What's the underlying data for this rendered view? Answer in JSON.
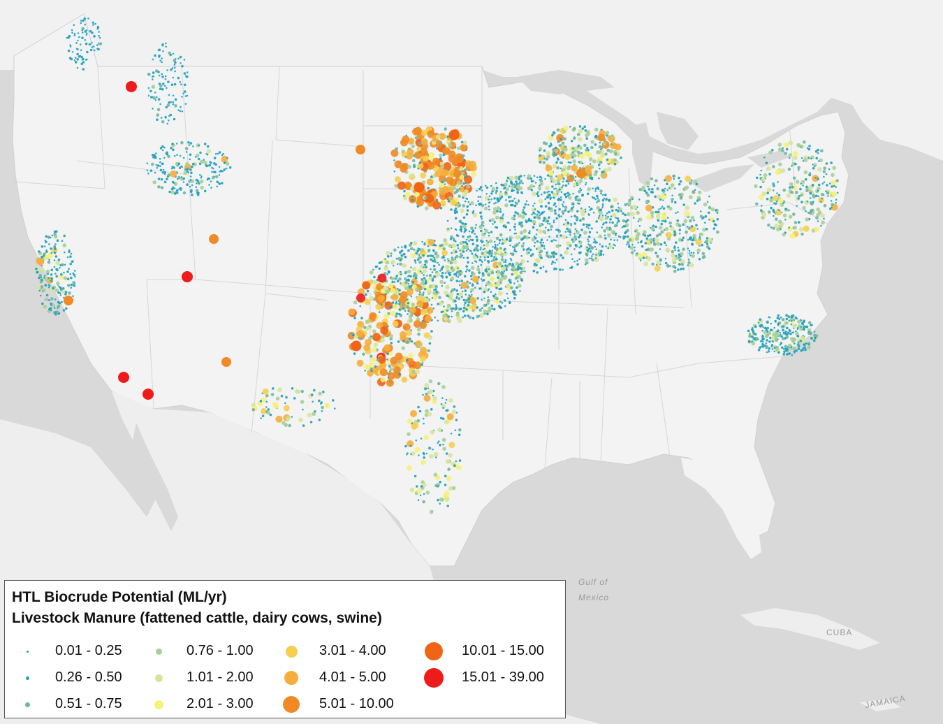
{
  "map": {
    "land_color": "#f1f1f1",
    "water_color": "#d9d9d9",
    "border_color": "#d5d5d5"
  },
  "place_labels": {
    "gulf_line1": "Gulf of",
    "gulf_line2": "Mexico",
    "cuba": "CUBA",
    "jamaica": "JAMAICA"
  },
  "legend": {
    "title": "HTL Biocrude Potential (ML/yr)",
    "subtitle": "Livestock Manure  (fattened cattle, dairy cows, swine)",
    "classes": [
      {
        "range": "0.01 - 0.25",
        "color": "#1ba3c6"
      },
      {
        "range": "0.26 - 0.50",
        "color": "#1f9fb8"
      },
      {
        "range": "0.51 - 0.75",
        "color": "#6fb5a0"
      },
      {
        "range": "0.76 - 1.00",
        "color": "#a7cf97"
      },
      {
        "range": "1.01 - 2.00",
        "color": "#d8e49a"
      },
      {
        "range": "2.01 - 3.00",
        "color": "#f6f17a"
      },
      {
        "range": "3.01 - 4.00",
        "color": "#f6cf50"
      },
      {
        "range": "4.01 - 5.00",
        "color": "#f5ad3c"
      },
      {
        "range": "5.01 - 10.00",
        "color": "#f08a25"
      },
      {
        "range": "10.01 - 15.00",
        "color": "#f06414"
      },
      {
        "range": "15.01 - 39.00",
        "color": "#ee1b1b"
      }
    ]
  }
}
